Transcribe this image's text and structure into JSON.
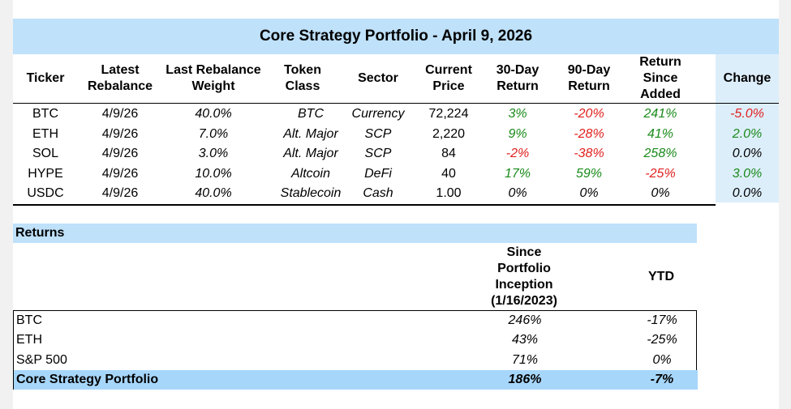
{
  "title": "Core Strategy Portfolio - April 9, 2026",
  "holdings": {
    "columns": [
      {
        "key": "ticker",
        "label": "Ticker"
      },
      {
        "key": "latest_rebalance",
        "label": "Latest Rebalance"
      },
      {
        "key": "weight",
        "label": "Last Rebalance Weight"
      },
      {
        "key": "token_class",
        "label": "Token Class"
      },
      {
        "key": "sector",
        "label": "Sector"
      },
      {
        "key": "price",
        "label": "Current Price"
      },
      {
        "key": "r30",
        "label": "30-Day Return"
      },
      {
        "key": "r90",
        "label": "90-Day Return"
      },
      {
        "key": "since_added",
        "label": "Return Since Added"
      },
      {
        "key": "change",
        "label": "Change"
      }
    ],
    "rows": [
      {
        "ticker": "BTC",
        "latest_rebalance": "4/9/26",
        "weight": "40.0%",
        "token_class": "BTC",
        "sector": "Currency",
        "price": "72,224",
        "r30": "3%",
        "r90": "-20%",
        "since_added": "241%",
        "change": "-5.0%"
      },
      {
        "ticker": "ETH",
        "latest_rebalance": "4/9/26",
        "weight": "7.0%",
        "token_class": "Alt. Major",
        "sector": "SCP",
        "price": "2,220",
        "r30": "9%",
        "r90": "-28%",
        "since_added": "41%",
        "change": "2.0%"
      },
      {
        "ticker": "SOL",
        "latest_rebalance": "4/9/26",
        "weight": "3.0%",
        "token_class": "Alt. Major",
        "sector": "SCP",
        "price": "84",
        "r30": "-2%",
        "r90": "-38%",
        "since_added": "258%",
        "change": "0.0%"
      },
      {
        "ticker": "HYPE",
        "latest_rebalance": "4/9/26",
        "weight": "10.0%",
        "token_class": "Altcoin",
        "sector": "DeFi",
        "price": "40",
        "r30": "17%",
        "r90": "59%",
        "since_added": "-25%",
        "change": "3.0%"
      },
      {
        "ticker": "USDC",
        "latest_rebalance": "4/9/26",
        "weight": "40.0%",
        "token_class": "Stablecoin",
        "sector": "Cash",
        "price": "1.00",
        "r30": "0%",
        "r90": "0%",
        "since_added": "0%",
        "change": "0.0%"
      }
    ]
  },
  "returns": {
    "section_title": "Returns",
    "col_since": "Since Portfolio Inception (1/16/2023)",
    "col_ytd": "YTD",
    "rows": [
      {
        "label": "BTC",
        "since": "246%",
        "ytd": "-17%"
      },
      {
        "label": "ETH",
        "since": "43%",
        "ytd": "-25%"
      },
      {
        "label": "S&P 500",
        "since": "71%",
        "ytd": "0%"
      },
      {
        "label": "Core Strategy Portfolio",
        "since": "186%",
        "ytd": "-7%"
      }
    ]
  },
  "colors": {
    "header_fill": "#bfe1fa",
    "change_fill": "#ddeefb",
    "total_fill": "#a7d6fb",
    "positive": "#1a8a1a",
    "negative": "#e0211e"
  }
}
